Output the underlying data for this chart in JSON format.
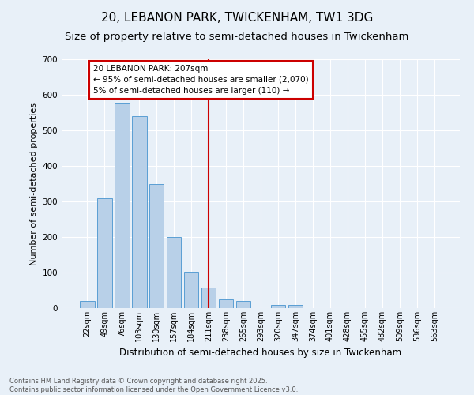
{
  "title": "20, LEBANON PARK, TWICKENHAM, TW1 3DG",
  "subtitle": "Size of property relative to semi-detached houses in Twickenham",
  "xlabel": "Distribution of semi-detached houses by size in Twickenham",
  "ylabel": "Number of semi-detached properties",
  "categories": [
    "22sqm",
    "49sqm",
    "76sqm",
    "103sqm",
    "130sqm",
    "157sqm",
    "184sqm",
    "211sqm",
    "238sqm",
    "265sqm",
    "293sqm",
    "320sqm",
    "347sqm",
    "374sqm",
    "401sqm",
    "428sqm",
    "455sqm",
    "482sqm",
    "509sqm",
    "536sqm",
    "563sqm"
  ],
  "values": [
    20,
    310,
    575,
    540,
    350,
    200,
    103,
    57,
    25,
    20,
    0,
    10,
    10,
    0,
    0,
    0,
    0,
    0,
    0,
    0,
    0
  ],
  "bar_color": "#b8d0e8",
  "bar_edgecolor": "#5a9fd4",
  "background_color": "#e8f0f8",
  "vline_x_index": 7,
  "vline_color": "#cc0000",
  "annotation_line1": "20 LEBANON PARK: 207sqm",
  "annotation_line2": "← 95% of semi-detached houses are smaller (2,070)",
  "annotation_line3": "5% of semi-detached houses are larger (110) →",
  "annotation_box_color": "#ffffff",
  "annotation_box_edgecolor": "#cc0000",
  "ylim": [
    0,
    700
  ],
  "yticks": [
    0,
    100,
    200,
    300,
    400,
    500,
    600,
    700
  ],
  "footer_text": "Contains HM Land Registry data © Crown copyright and database right 2025.\nContains public sector information licensed under the Open Government Licence v3.0.",
  "title_fontsize": 11,
  "subtitle_fontsize": 9.5,
  "xlabel_fontsize": 8.5,
  "ylabel_fontsize": 8,
  "annotation_fontsize": 7.5,
  "footer_fontsize": 6,
  "tick_fontsize": 7,
  "ytick_fontsize": 7.5
}
